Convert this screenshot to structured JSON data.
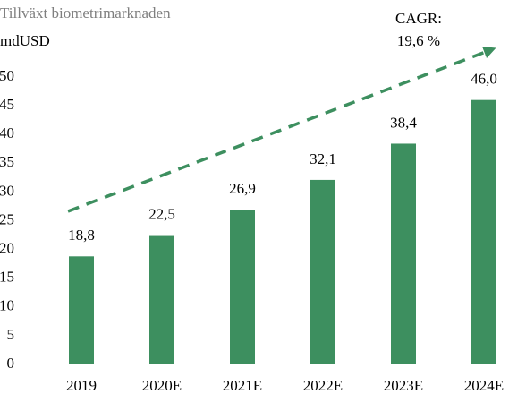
{
  "chart_data": {
    "type": "bar",
    "title": "Tillväxt biometrimarknaden",
    "subtitle": "mdUSD",
    "annotation": [
      "CAGR:",
      "19,6 %"
    ],
    "categories": [
      "2019",
      "2020E",
      "2021E",
      "2022E",
      "2023E",
      "2024E"
    ],
    "values": [
      18.8,
      22.5,
      26.9,
      32.1,
      38.4,
      46.0
    ],
    "value_labels": [
      "18,8",
      "22,5",
      "26,9",
      "32,1",
      "38,4",
      "46,0"
    ],
    "color": "#3d8f5f",
    "ylim": [
      0,
      50
    ],
    "yticks": [
      0,
      5,
      10,
      15,
      20,
      25,
      30,
      35,
      40,
      45,
      50
    ],
    "grid": false
  }
}
